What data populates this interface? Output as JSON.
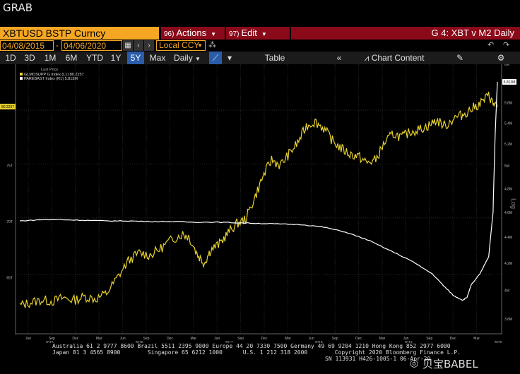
{
  "header": {
    "grab": "GRAB"
  },
  "menubar": {
    "ticker": "XBTUSD BSTP Curncy",
    "actions_num": "96)",
    "actions_label": "Actions",
    "edit_num": "97)",
    "edit_label": "Edit",
    "title": "G 4: XBT v M2 Daily"
  },
  "datebar": {
    "start_date": "04/08/2015",
    "separator": "-",
    "end_date": "04/06/2020",
    "currency": "Local CCY"
  },
  "toolbar": {
    "periods": [
      "1D",
      "3D",
      "1M",
      "6M",
      "YTD",
      "1Y",
      "5Y",
      "Max"
    ],
    "active_period": "5Y",
    "frequency": "Daily",
    "table": "Table",
    "chart_content": "Chart Content"
  },
  "legend": {
    "header": "Last Price",
    "series1": "GLMOSUPP G Index (L1) 80.2257",
    "series2": "PAREBAST Index (R1)    5.813M"
  },
  "colors": {
    "series1": "#e8d22e",
    "series2": "#ffffff",
    "accent": "#f5a623",
    "menu": "#8b0a1a"
  },
  "chart_data": {
    "type": "line",
    "x_ticks": [
      "Jun",
      "Sep",
      "Dec",
      "Mar",
      "Jun",
      "Sep",
      "Dec",
      "Mar",
      "Jun",
      "Sep",
      "Dec",
      "Mar",
      "Jun",
      "Sep",
      "Dec",
      "Mar",
      "Jun",
      "Sep",
      "Dec",
      "Mar"
    ],
    "year_ticks": [
      "2015",
      "2016",
      "2017",
      "2018",
      "2019",
      "2020"
    ],
    "left_ticks": [
      "80.2257",
      "75T",
      "70T",
      "65T"
    ],
    "right_ticks": [
      "6M",
      "5.813M",
      "5.6M",
      "5.4M",
      "5.2M",
      "5M",
      "4.8M",
      "4.6M",
      "4.4M",
      "4.2M",
      "4M",
      "3.8M"
    ],
    "right_axis_label": "Log",
    "series": [
      {
        "name": "GLMOSUPP G Index",
        "axis": "left",
        "points": [
          [
            0,
            62.5
          ],
          [
            5,
            62.8
          ],
          [
            10,
            63.0
          ],
          [
            15,
            62.9
          ],
          [
            20,
            63.2
          ],
          [
            25,
            63.0
          ],
          [
            30,
            63.3
          ],
          [
            35,
            63.1
          ],
          [
            40,
            63.6
          ],
          [
            45,
            65.0
          ],
          [
            50,
            66.5
          ],
          [
            55,
            67.2
          ],
          [
            60,
            67.0
          ],
          [
            65,
            67.6
          ],
          [
            70,
            68.4
          ],
          [
            75,
            68.9
          ],
          [
            78,
            68.6
          ],
          [
            82,
            67.0
          ],
          [
            85,
            66.3
          ],
          [
            88,
            67.5
          ],
          [
            92,
            68.0
          ],
          [
            96,
            69.0
          ],
          [
            100,
            69.8
          ],
          [
            104,
            70.2
          ],
          [
            108,
            72.0
          ],
          [
            112,
            74.0
          ],
          [
            116,
            75.5
          ],
          [
            120,
            75.0
          ],
          [
            124,
            76.0
          ],
          [
            128,
            77.0
          ],
          [
            132,
            78.5
          ],
          [
            136,
            78.9
          ],
          [
            140,
            78.3
          ],
          [
            144,
            77.2
          ],
          [
            148,
            76.5
          ],
          [
            152,
            76.0
          ],
          [
            156,
            75.8
          ],
          [
            160,
            75.2
          ],
          [
            164,
            75.5
          ],
          [
            168,
            77.0
          ],
          [
            172,
            77.8
          ],
          [
            176,
            77.5
          ],
          [
            180,
            78.0
          ],
          [
            184,
            78.2
          ],
          [
            188,
            78.5
          ],
          [
            192,
            79.0
          ],
          [
            196,
            78.5
          ],
          [
            200,
            79.2
          ],
          [
            204,
            79.5
          ],
          [
            208,
            80.0
          ],
          [
            212,
            80.5
          ],
          [
            216,
            81.2
          ],
          [
            218,
            80.5
          ],
          [
            220,
            80.2
          ]
        ]
      },
      {
        "name": "PAREBAST Index",
        "axis": "right",
        "points": [
          [
            0,
            4.53
          ],
          [
            10,
            4.54
          ],
          [
            20,
            4.54
          ],
          [
            30,
            4.535
          ],
          [
            40,
            4.53
          ],
          [
            50,
            4.53
          ],
          [
            60,
            4.525
          ],
          [
            70,
            4.525
          ],
          [
            80,
            4.52
          ],
          [
            90,
            4.52
          ],
          [
            100,
            4.515
          ],
          [
            110,
            4.51
          ],
          [
            120,
            4.505
          ],
          [
            130,
            4.5
          ],
          [
            140,
            4.48
          ],
          [
            150,
            4.44
          ],
          [
            160,
            4.38
          ],
          [
            170,
            4.3
          ],
          [
            180,
            4.22
          ],
          [
            190,
            4.12
          ],
          [
            196,
            4.02
          ],
          [
            200,
            3.96
          ],
          [
            204,
            3.93
          ],
          [
            206,
            3.95
          ],
          [
            208,
            4.04
          ],
          [
            212,
            4.12
          ],
          [
            216,
            4.25
          ],
          [
            218,
            4.6
          ],
          [
            219,
            5.3
          ],
          [
            220,
            5.813
          ]
        ]
      }
    ]
  },
  "footer": {
    "line1": "Australia 61 2 9777 8600 Brazil 5511 2395 9000 Europe 44 20 7330 7500 Germany 49 69 9204 1210 Hong Kong 852 2977 6000",
    "line2": "Japan 81 3 4565 8900        Singapore 65 6212 1000      U.S. 1 212 318 2000        Copyright 2020 Bloomberg Finance L.P.",
    "line3": "SN 113931 H426-1005-1 06-Apr-20"
  },
  "watermark": {
    "text": "贝宝BABEL"
  }
}
